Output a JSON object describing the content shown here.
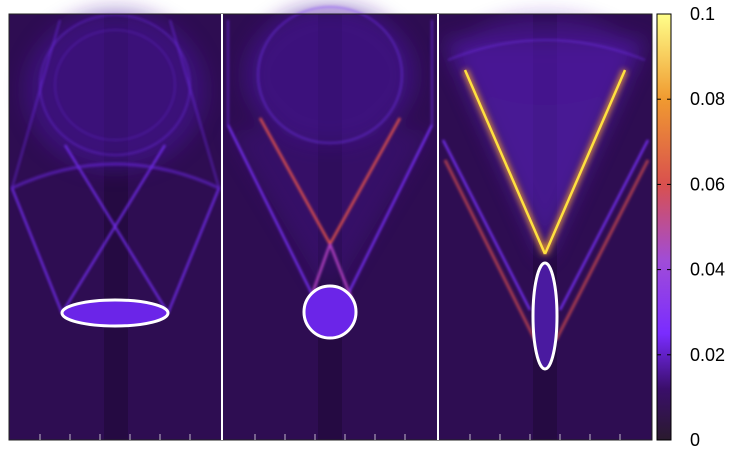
{
  "chart_data": {
    "type": "heatmap",
    "panel_count": 3,
    "panel_obstacles": [
      {
        "shape": "ellipse",
        "orientation": "horizontal",
        "color": "#ffffff"
      },
      {
        "shape": "circle",
        "color": "#ffffff"
      },
      {
        "shape": "ellipse",
        "orientation": "vertical",
        "color": "#ffffff"
      }
    ],
    "colorbar": {
      "range": [
        0,
        0.1
      ],
      "ticks": [
        {
          "value": 0,
          "label": "0"
        },
        {
          "value": 0.02,
          "label": "0.02"
        },
        {
          "value": 0.04,
          "label": "0.04"
        },
        {
          "value": 0.06,
          "label": "0.06"
        },
        {
          "value": 0.08,
          "label": "0.08"
        },
        {
          "value": 0.1,
          "label": "0.1"
        }
      ],
      "palette": [
        "#2a1a2e",
        "#3a0e6a",
        "#7a2cff",
        "#a04cd8",
        "#d9504e",
        "#f09a30",
        "#ffff8a"
      ]
    },
    "grid": false,
    "legend": "colorbar-right"
  }
}
